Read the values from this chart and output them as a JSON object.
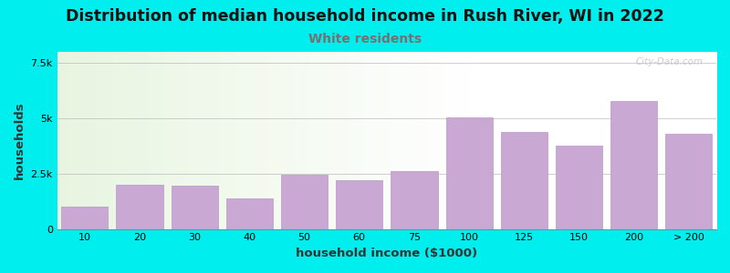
{
  "title": "Distribution of median household income in Rush River, WI in 2022",
  "subtitle": "White residents",
  "xlabel": "household income ($1000)",
  "ylabel": "households",
  "bg_color": "#00EEEE",
  "bar_color": "#C9A8D4",
  "bar_edge_color": "#b898c8",
  "categories": [
    "10",
    "20",
    "30",
    "40",
    "50",
    "60",
    "75",
    "100",
    "125",
    "150",
    "200",
    "> 200"
  ],
  "values": [
    1000,
    2000,
    1950,
    1400,
    2450,
    2200,
    2600,
    5050,
    4400,
    3750,
    5800,
    4300
  ],
  "ylim": [
    0,
    8000
  ],
  "yticks": [
    0,
    2500,
    5000,
    7500
  ],
  "ytick_labels": [
    "0",
    "2.5k",
    "5k",
    "7.5k"
  ],
  "title_fontsize": 12.5,
  "subtitle_fontsize": 10,
  "subtitle_color": "#777070",
  "axis_label_fontsize": 9.5,
  "watermark": "City-Data.com"
}
